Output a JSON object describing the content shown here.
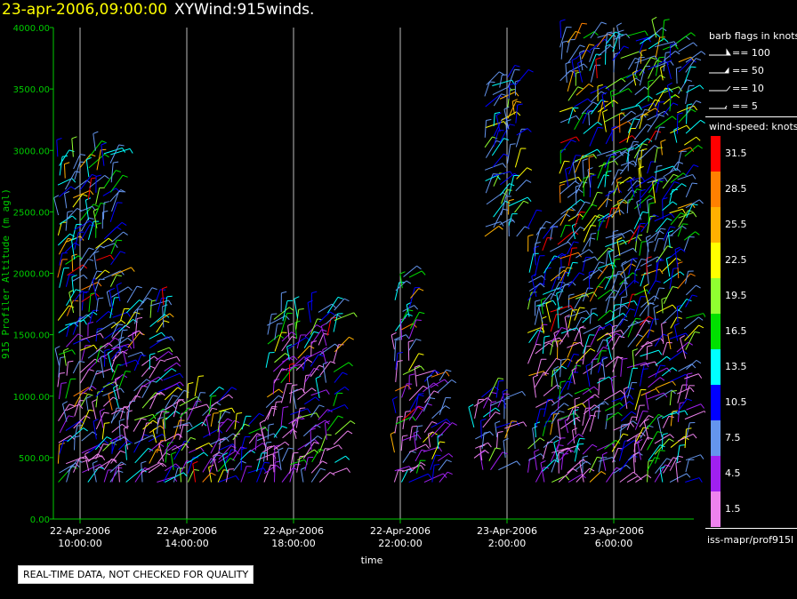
{
  "title": {
    "datetime": "23-apr-2006,09:00:00",
    "main": "XYWind:915winds."
  },
  "notice": "REAL-TIME DATA, NOT CHECKED FOR QUALITY",
  "legend": {
    "barb_title": "barb flags in knots",
    "barb_flags": [
      "== 100",
      "== 50",
      "== 10",
      "== 5"
    ],
    "speed_title": "wind-speed: knots",
    "speed_bins": [
      {
        "label": "31.5",
        "color": "#ff0000"
      },
      {
        "label": "28.5",
        "color": "#ff8000"
      },
      {
        "label": "25.5",
        "color": "#ffb000"
      },
      {
        "label": "22.5",
        "color": "#ffff00"
      },
      {
        "label": "19.5",
        "color": "#90ff30"
      },
      {
        "label": "16.5",
        "color": "#00e000"
      },
      {
        "label": "13.5",
        "color": "#00ffff"
      },
      {
        "label": "10.5",
        "color": "#0000ff"
      },
      {
        "label": "7.5",
        "color": "#6495ed"
      },
      {
        "label": "4.5",
        "color": "#a020f0"
      },
      {
        "label": "1.5",
        "color": "#ee82ee"
      }
    ],
    "footer": "iss-mapr/prof915l"
  },
  "chart_data": {
    "type": "scatter",
    "title": "XYWind:915winds.",
    "xlabel": "time",
    "ylabel": "915 Profiler Altitude (m agl)",
    "ylim": [
      0,
      4000
    ],
    "yticks": [
      "0.00",
      "500.00",
      "1000.00",
      "1500.00",
      "2000.00",
      "2500.00",
      "3000.00",
      "3500.00",
      "4000.00"
    ],
    "xticks": [
      {
        "date": "22-Apr-2006",
        "time": "10:00:00"
      },
      {
        "date": "22-Apr-2006",
        "time": "14:00:00"
      },
      {
        "date": "22-Apr-2006",
        "time": "18:00:00"
      },
      {
        "date": "22-Apr-2006",
        "time": "22:00:00"
      },
      {
        "date": "23-Apr-2006",
        "time": "2:00:00"
      },
      {
        "date": "23-Apr-2006",
        "time": "6:00:00"
      }
    ],
    "xrange_hours": [
      9.0,
      33.0
    ],
    "grid_x": true,
    "colors": {
      "axis": "#00cc00",
      "grid": "#bbbbbb",
      "label": "#ffffff"
    }
  }
}
